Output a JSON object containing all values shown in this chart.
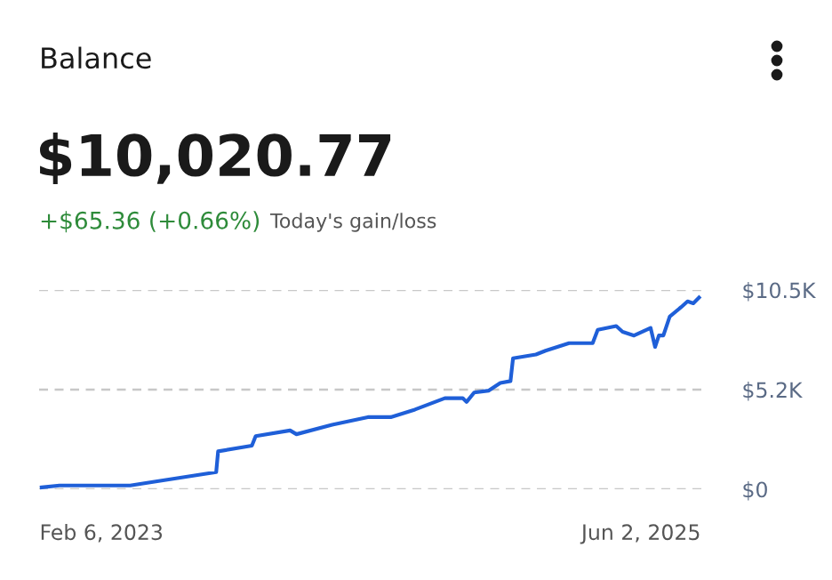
{
  "chart_data": {
    "type": "line",
    "title": "Balance",
    "subtitle": "$10,020.77",
    "annotations": [
      "+$65.36 (+0.66%)",
      "Today's gain/loss"
    ],
    "x": [
      "2022-11-04",
      "2022-12-02",
      "2023-03-23",
      "2023-04-30",
      "2023-08-05",
      "2023-08-08",
      "2023-09-30",
      "2023-10-06",
      "2023-11-29",
      "2023-12-09",
      "2024-02-03",
      "2024-03-30",
      "2024-05-05",
      "2024-06-12",
      "2024-07-29",
      "2024-08-26",
      "2024-09-01",
      "2024-09-13",
      "2024-10-06",
      "2024-10-24",
      "2024-11-09",
      "2024-11-13",
      "2024-12-19",
      "2025-01-03",
      "2025-02-09",
      "2025-03-18",
      "2025-03-26",
      "2025-04-24",
      "2025-05-04",
      "2025-05-22",
      "2025-06-17",
      "2025-06-24",
      "2025-06-30",
      "2025-07-07",
      "2025-07-17",
      "2025-08-04",
      "2025-08-14",
      "2025-08-23",
      "2025-09-01"
    ],
    "series": [
      {
        "color": "#1f5fd8",
        "values": [
          100,
          200,
          200,
          400,
          900,
          2000,
          2300,
          2800,
          3100,
          2900,
          3400,
          3800,
          3800,
          4200,
          4800,
          4800,
          4600,
          5100,
          5200,
          5600,
          5700,
          6900,
          7100,
          7300,
          7700,
          7700,
          8400,
          8600,
          8300,
          8100,
          8500,
          7500,
          8100,
          8100,
          9100,
          9600,
          9900,
          9800,
          10100
        ]
      }
    ],
    "xlim": [
      "2022-10-31",
      "2025-09-06"
    ],
    "xticks": [
      {
        "value": "2023-02-06",
        "label": "Feb 6, 2023"
      },
      {
        "value": "2025-06-02",
        "label": "Jun 2, 2025"
      }
    ],
    "ylim": [
      0,
      10500
    ],
    "yticks": [
      {
        "value": 0,
        "label": "$0"
      },
      {
        "value": 5250,
        "label": "$5.2K"
      },
      {
        "value": 10500,
        "label": "$10.5K"
      }
    ],
    "grid": "y",
    "marker": "none",
    "line_style": "solid"
  }
}
